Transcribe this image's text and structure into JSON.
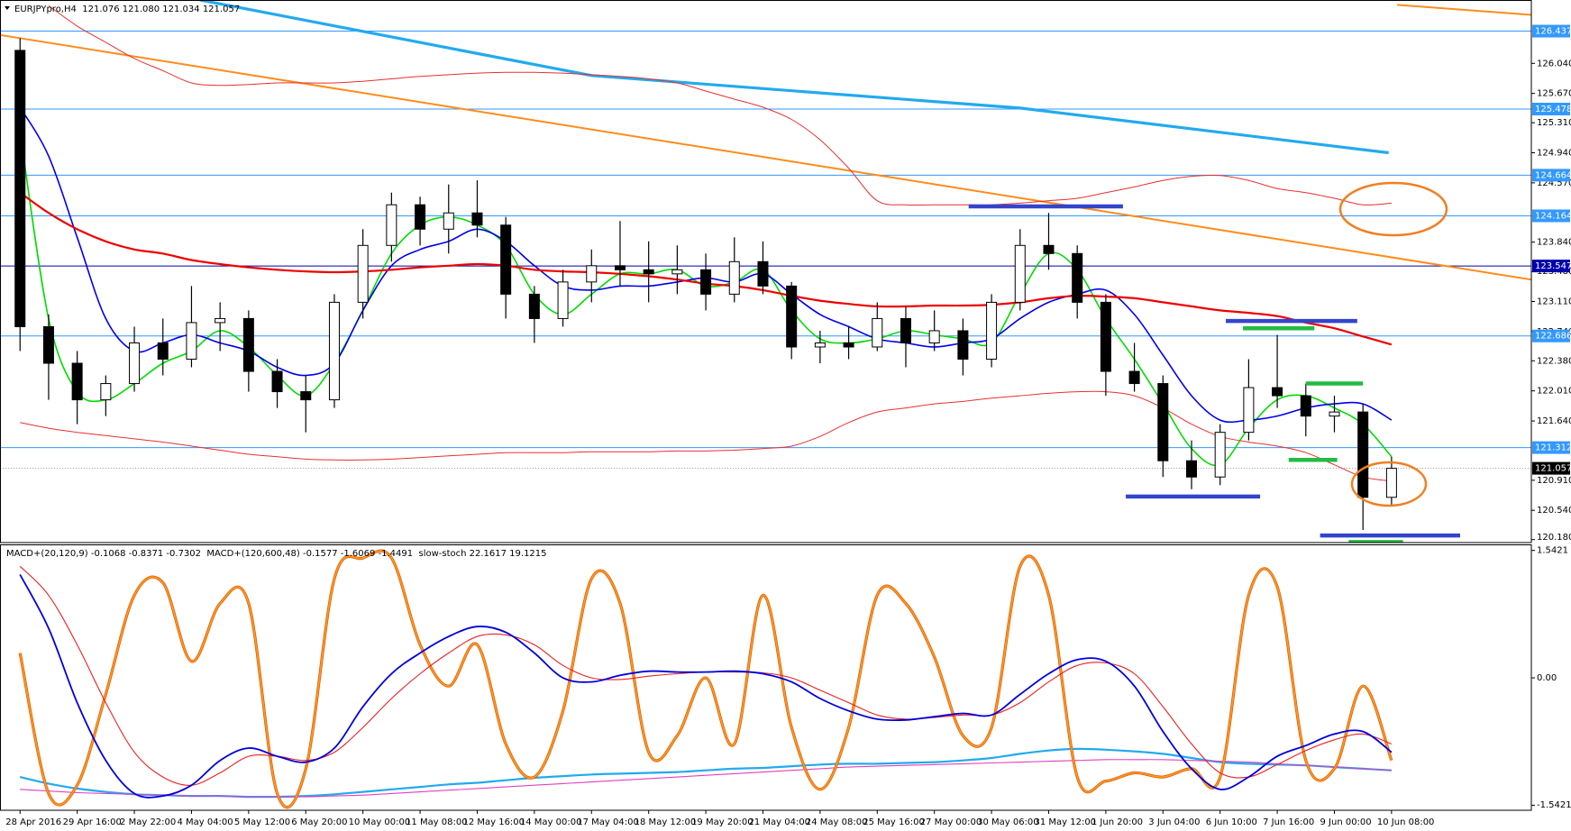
{
  "chart_data": [
    {
      "type": "candlestick",
      "title": "EURJPYpro,H4  121.076 121.080 121.034 121.057",
      "ylim": [
        120.143,
        126.82
      ],
      "yticks": [
        {
          "value": 126.04,
          "label": "126.040"
        },
        {
          "value": 125.67,
          "label": "125.670"
        },
        {
          "value": 125.31,
          "label": "125.310"
        },
        {
          "value": 124.94,
          "label": "124.940"
        },
        {
          "value": 124.57,
          "label": "124.570"
        },
        {
          "value": 123.84,
          "label": "123.840"
        },
        {
          "value": 123.48,
          "label": "123.480"
        },
        {
          "value": 123.11,
          "label": "123.110"
        },
        {
          "value": 122.74,
          "label": "122.740"
        },
        {
          "value": 122.38,
          "label": "122.380"
        },
        {
          "value": 122.01,
          "label": "122.010"
        },
        {
          "value": 121.64,
          "label": "121.640"
        },
        {
          "value": 120.91,
          "label": "120.910"
        },
        {
          "value": 120.54,
          "label": "120.540"
        },
        {
          "value": 120.18,
          "label": "120.180"
        }
      ],
      "open": [
        126.2,
        122.8,
        122.35,
        121.9,
        122.1,
        122.6,
        122.4,
        122.85,
        122.9,
        122.25,
        122.0,
        121.9,
        123.1,
        123.8,
        124.3,
        124.0,
        124.2,
        124.05,
        123.2,
        122.9,
        123.35,
        123.55,
        123.5,
        123.45,
        123.5,
        123.2,
        123.6,
        123.3,
        122.55,
        122.6,
        122.55,
        122.9,
        122.6,
        122.75,
        122.4,
        123.1,
        123.8,
        123.7,
        123.1,
        122.25,
        122.1,
        121.15,
        120.95,
        121.5,
        122.05,
        121.95,
        121.7,
        121.75,
        120.7
      ],
      "high": [
        126.35,
        122.95,
        122.5,
        122.2,
        122.8,
        122.9,
        123.3,
        123.1,
        123.0,
        122.4,
        122.2,
        123.2,
        124.0,
        124.45,
        124.4,
        124.55,
        124.6,
        124.15,
        123.3,
        123.5,
        123.75,
        124.1,
        123.85,
        123.8,
        123.7,
        123.9,
        123.85,
        123.35,
        122.75,
        122.8,
        123.1,
        123.05,
        123.0,
        122.9,
        123.2,
        124.0,
        124.2,
        123.8,
        123.2,
        122.6,
        122.2,
        121.4,
        121.6,
        122.4,
        122.7,
        122.1,
        121.95,
        121.85,
        121.2
      ],
      "low": [
        122.5,
        121.9,
        121.6,
        121.7,
        122.0,
        122.2,
        122.3,
        122.5,
        122.0,
        121.8,
        121.5,
        121.8,
        122.9,
        123.6,
        123.8,
        123.7,
        123.9,
        122.9,
        122.6,
        122.8,
        123.1,
        123.3,
        123.1,
        123.2,
        123.0,
        123.1,
        123.2,
        122.4,
        122.35,
        122.4,
        122.5,
        122.3,
        122.5,
        122.2,
        122.3,
        123.0,
        123.5,
        122.9,
        121.95,
        122.0,
        120.95,
        120.8,
        120.85,
        121.4,
        121.8,
        121.45,
        121.5,
        120.3,
        120.6
      ],
      "close": [
        122.8,
        122.35,
        121.9,
        122.1,
        122.6,
        122.4,
        122.85,
        122.9,
        122.25,
        122.0,
        121.9,
        123.1,
        123.8,
        124.3,
        124.0,
        124.2,
        124.05,
        123.2,
        122.9,
        123.35,
        123.55,
        123.5,
        123.45,
        123.5,
        123.2,
        123.6,
        123.3,
        122.55,
        122.6,
        122.55,
        122.9,
        122.6,
        122.75,
        122.4,
        123.1,
        123.8,
        123.7,
        123.1,
        122.25,
        122.1,
        121.15,
        120.95,
        121.5,
        122.05,
        121.95,
        121.7,
        121.75,
        120.7,
        121.057
      ],
      "overlays": [
        {
          "color": "#00dd00",
          "values": [
            125.2,
            122.9,
            122.0,
            121.9,
            122.1,
            122.35,
            122.5,
            122.75,
            122.55,
            122.2,
            121.95,
            122.35,
            123.0,
            123.7,
            124.05,
            124.15,
            124.05,
            123.8,
            123.2,
            122.95,
            123.2,
            123.45,
            123.45,
            123.5,
            123.3,
            123.35,
            123.5,
            123.0,
            122.65,
            122.6,
            122.65,
            122.75,
            122.7,
            122.65,
            122.6,
            123.2,
            123.7,
            123.5,
            122.9,
            122.4,
            121.85,
            121.3,
            121.1,
            121.55,
            121.9,
            121.95,
            121.8,
            121.6,
            121.2
          ]
        },
        {
          "color": "#0000ee",
          "values": [
            125.5,
            124.9,
            123.9,
            122.9,
            122.5,
            122.6,
            122.7,
            122.6,
            122.5,
            122.3,
            122.2,
            122.35,
            123.0,
            123.55,
            123.75,
            123.85,
            124.0,
            123.85,
            123.55,
            123.3,
            123.25,
            123.3,
            123.3,
            123.35,
            123.4,
            123.35,
            123.45,
            123.2,
            122.95,
            122.8,
            122.65,
            122.6,
            122.55,
            122.6,
            122.65,
            122.9,
            123.1,
            123.2,
            123.25,
            122.95,
            122.45,
            121.95,
            121.65,
            121.65,
            121.7,
            121.8,
            121.85,
            121.85,
            121.65
          ]
        },
        {
          "color": "#ee0000",
          "values": [
            124.45,
            124.2,
            124.0,
            123.85,
            123.75,
            123.7,
            123.62,
            123.57,
            123.53,
            123.5,
            123.48,
            123.47,
            123.48,
            123.5,
            123.53,
            123.55,
            123.57,
            123.55,
            123.5,
            123.48,
            123.47,
            123.45,
            123.42,
            123.38,
            123.33,
            123.3,
            123.25,
            123.18,
            123.12,
            123.08,
            123.05,
            123.05,
            123.06,
            123.06,
            123.07,
            123.1,
            123.15,
            123.18,
            123.17,
            123.15,
            123.1,
            123.05,
            123.0,
            122.97,
            122.93,
            122.85,
            122.78,
            122.68,
            122.58
          ]
        },
        {
          "color": "#e83030",
          "values": [
            null,
            126.75,
            126.5,
            126.3,
            126.1,
            125.95,
            125.8,
            125.77,
            125.78,
            125.8,
            125.8,
            125.8,
            125.82,
            125.85,
            125.88,
            125.9,
            125.92,
            125.93,
            125.93,
            125.92,
            125.9,
            125.88,
            125.85,
            125.8,
            125.7,
            125.6,
            125.5,
            125.35,
            125.1,
            124.75,
            124.35,
            124.3,
            124.3,
            124.3,
            124.3,
            124.32,
            124.35,
            124.38,
            124.45,
            124.52,
            124.6,
            124.65,
            124.66,
            124.6,
            124.5,
            124.45,
            124.38,
            124.3,
            124.32
          ]
        },
        {
          "color": "#e83030",
          "values": [
            121.62,
            121.55,
            121.5,
            121.46,
            121.42,
            121.38,
            121.33,
            121.28,
            121.23,
            121.2,
            121.17,
            121.16,
            121.16,
            121.17,
            121.19,
            121.21,
            121.23,
            121.25,
            121.25,
            121.25,
            121.26,
            121.26,
            121.26,
            121.27,
            121.27,
            121.28,
            121.3,
            121.33,
            121.45,
            121.62,
            121.75,
            121.8,
            121.85,
            121.88,
            121.92,
            121.95,
            121.98,
            122.0,
            122.0,
            121.95,
            121.8,
            121.6,
            121.45,
            121.38,
            121.33,
            121.25,
            121.1,
            120.95,
            120.9
          ]
        }
      ],
      "trendlines": [
        {
          "color": "#22aaee",
          "x": [
            6.3,
            20,
            35,
            47.9
          ],
          "values": [
            126.82,
            125.89,
            125.49,
            124.94
          ]
        },
        {
          "color": "#ff8c1a",
          "x": [
            -0.7,
            54.3
          ],
          "values": [
            126.39,
            123.3
          ]
        },
        {
          "color": "#ff8c1a",
          "x": [
            48.2,
            54.3
          ],
          "values": [
            126.76,
            126.6
          ]
        }
      ],
      "levels": [
        {
          "value": 126.437,
          "color": "#3399ff"
        },
        {
          "value": 125.478,
          "color": "#3399ff"
        },
        {
          "value": 124.664,
          "color": "#3399ff"
        },
        {
          "value": 124.164,
          "color": "#3399ff"
        },
        {
          "value": 123.547,
          "color": "#0000aa"
        },
        {
          "value": 122.686,
          "color": "#3399ff"
        },
        {
          "value": 121.312,
          "color": "#3399ff"
        },
        {
          "value": 121.057,
          "color": "#000000"
        }
      ],
      "segments": [
        {
          "color": "#3344cc",
          "x": [
            33.2,
            38.6
          ],
          "value": 124.28
        },
        {
          "color": "#3344cc",
          "x": [
            42.2,
            46.8
          ],
          "value": 122.87
        },
        {
          "color": "#3344cc",
          "x": [
            38.7,
            43.4
          ],
          "value": 120.71
        },
        {
          "color": "#3344cc",
          "x": [
            45.5,
            50.4
          ],
          "value": 120.23
        },
        {
          "color": "#22bb44",
          "x": [
            42.8,
            45.3
          ],
          "value": 122.78
        },
        {
          "color": "#22bb44",
          "x": [
            45.0,
            47.0
          ],
          "value": 122.1
        },
        {
          "color": "#22bb44",
          "x": [
            44.4,
            46.1
          ],
          "value": 121.16
        },
        {
          "color": "#22bb44",
          "x": [
            46.5,
            48.4
          ],
          "value": 120.15
        }
      ]
    },
    {
      "type": "line",
      "title": "MACD+(20,120,9) -0.1068 -0.8371 -0.7302  MACD+(120,600,48) -0.1577 -1.6069 -1.4491  slow-stoch 22.1617 19.1215",
      "ylim": [
        -1.603,
        1.615
      ],
      "yticks": [
        1.5421,
        {
          "value": 0,
          "label": "0.00"
        },
        -1.5421
      ],
      "categories": [
        "28 Apr 2016",
        null,
        "29 Apr 16:00",
        null,
        "2 May 22:00",
        null,
        "4 May 04:00",
        null,
        "5 May 12:00",
        null,
        "6 May 20:00",
        null,
        "10 May 00:00",
        null,
        "11 May 08:00",
        null,
        "12 May 16:00",
        null,
        "14 May 00:00",
        null,
        "17 May 04:00",
        null,
        "18 May 12:00",
        null,
        "19 May 20:00",
        null,
        "21 May 04:00",
        null,
        "24 May 08:00",
        null,
        "25 May 16:00",
        null,
        "27 May 00:00",
        null,
        "30 May 06:00",
        null,
        "31 May 12:00",
        null,
        "1 Jun 20:00",
        null,
        "3 Jun 04:00",
        null,
        "6 Jun 10:00",
        null,
        "7 Jun 16:00",
        null,
        "9 Jun 00:00",
        null,
        "10 Jun 08:00"
      ],
      "series": [
        {
          "color": "#22aaee",
          "values": [
            -1.2,
            -1.28,
            -1.34,
            -1.38,
            -1.41,
            -1.42,
            -1.43,
            -1.43,
            -1.44,
            -1.44,
            -1.43,
            -1.41,
            -1.38,
            -1.35,
            -1.32,
            -1.29,
            -1.27,
            -1.24,
            -1.21,
            -1.19,
            -1.17,
            -1.16,
            -1.15,
            -1.14,
            -1.12,
            -1.1,
            -1.09,
            -1.07,
            -1.05,
            -1.04,
            -1.04,
            -1.03,
            -1.02,
            -1.0,
            -0.97,
            -0.92,
            -0.88,
            -0.86,
            -0.87,
            -0.89,
            -0.92,
            -0.97,
            -1.02,
            -1.04,
            -1.05,
            -1.06,
            -1.08,
            -1.1,
            -1.12
          ]
        },
        {
          "color": "#e040c0",
          "values": [
            -1.35,
            -1.37,
            -1.39,
            -1.4,
            -1.41,
            -1.42,
            -1.43,
            -1.43,
            -1.44,
            -1.44,
            -1.44,
            -1.43,
            -1.42,
            -1.4,
            -1.38,
            -1.36,
            -1.34,
            -1.32,
            -1.3,
            -1.28,
            -1.26,
            -1.24,
            -1.22,
            -1.2,
            -1.18,
            -1.16,
            -1.14,
            -1.12,
            -1.1,
            -1.08,
            -1.07,
            -1.06,
            -1.05,
            -1.04,
            -1.03,
            -1.02,
            -1.01,
            -1.0,
            -0.99,
            -0.99,
            -0.99,
            -1.0,
            -1.01,
            -1.02,
            -1.04,
            -1.06,
            -1.08,
            -1.1,
            -1.12
          ]
        },
        {
          "color": "#ff9a1a",
          "values": [
            0.3,
            -1.4,
            -1.3,
            -0.2,
            1.0,
            1.15,
            0.2,
            0.9,
            0.9,
            -1.4,
            -1.1,
            1.2,
            1.45,
            1.45,
            0.4,
            -0.1,
            0.4,
            -0.8,
            -1.2,
            -0.4,
            1.2,
            0.9,
            -0.9,
            -0.7,
            0.0,
            -0.8,
            1.0,
            -0.6,
            -1.35,
            -0.6,
            1.0,
            0.9,
            0.25,
            -0.7,
            -0.6,
            1.35,
            1.0,
            -1.2,
            -1.25,
            -1.15,
            -1.2,
            -1.1,
            -1.2,
            1.0,
            1.1,
            -1.0,
            -1.1,
            -0.1,
            -1.0
          ]
        },
        {
          "color": "#ee2020",
          "values": [
            1.35,
            1.0,
            0.4,
            -0.3,
            -0.9,
            -1.2,
            -1.3,
            -1.15,
            -0.95,
            -0.95,
            -1.0,
            -0.9,
            -0.6,
            -0.25,
            0.05,
            0.3,
            0.5,
            0.52,
            0.4,
            0.15,
            0.0,
            -0.02,
            0.02,
            0.05,
            0.07,
            0.07,
            0.06,
            0.0,
            -0.15,
            -0.3,
            -0.45,
            -0.5,
            -0.48,
            -0.45,
            -0.45,
            -0.3,
            -0.05,
            0.15,
            0.18,
            0.05,
            -0.35,
            -0.8,
            -1.15,
            -1.2,
            -1.05,
            -0.88,
            -0.75,
            -0.68,
            -0.8
          ]
        },
        {
          "color": "#0000dd",
          "values": [
            1.25,
            0.6,
            -0.3,
            -1.0,
            -1.4,
            -1.43,
            -1.3,
            -1.0,
            -0.85,
            -0.95,
            -1.02,
            -0.85,
            -0.35,
            0.05,
            0.3,
            0.5,
            0.62,
            0.55,
            0.3,
            0.0,
            -0.05,
            0.03,
            0.08,
            0.07,
            0.07,
            0.08,
            0.05,
            -0.05,
            -0.25,
            -0.4,
            -0.5,
            -0.51,
            -0.47,
            -0.43,
            -0.45,
            -0.2,
            0.05,
            0.22,
            0.2,
            -0.1,
            -0.65,
            -1.1,
            -1.35,
            -1.2,
            -0.95,
            -0.82,
            -0.68,
            -0.65,
            -0.9
          ]
        }
      ]
    }
  ]
}
